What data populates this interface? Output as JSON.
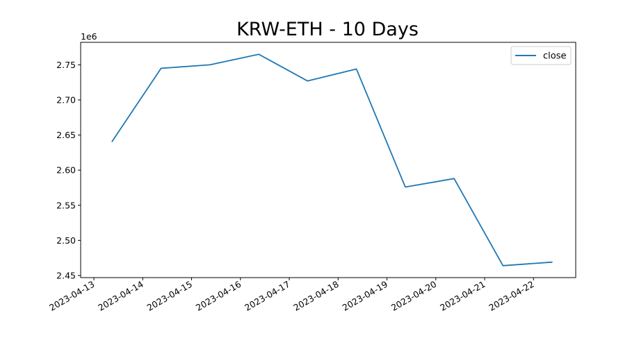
{
  "chart_data": {
    "type": "line",
    "title": "KRW-ETH - 10 Days",
    "xlabel": "",
    "ylabel": "",
    "y_offset_label": "1e6",
    "x_ticks": [
      "2023-04-13",
      "2023-04-14",
      "2023-04-15",
      "2023-04-16",
      "2023-04-17",
      "2023-04-18",
      "2023-04-19",
      "2023-04-20",
      "2023-04-21",
      "2023-04-22"
    ],
    "y_ticks": [
      "2.45",
      "2.50",
      "2.55",
      "2.60",
      "2.65",
      "2.70",
      "2.75"
    ],
    "ylim": [
      2.447,
      2.782
    ],
    "xlim": [
      "2023-04-12 17:30",
      "2023-04-22 20:45"
    ],
    "grid": false,
    "legend_position": "top-right",
    "series": [
      {
        "name": "close",
        "color": "#1f77b4",
        "x": [
          "2023-04-13 09:00",
          "2023-04-14 09:00",
          "2023-04-15 09:00",
          "2023-04-16 09:00",
          "2023-04-17 09:00",
          "2023-04-18 09:00",
          "2023-04-19 09:00",
          "2023-04-20 09:00",
          "2023-04-21 09:00",
          "2023-04-22 09:00"
        ],
        "values": [
          2.641,
          2.745,
          2.75,
          2.765,
          2.727,
          2.744,
          2.576,
          2.588,
          2.464,
          2.469
        ]
      }
    ]
  }
}
